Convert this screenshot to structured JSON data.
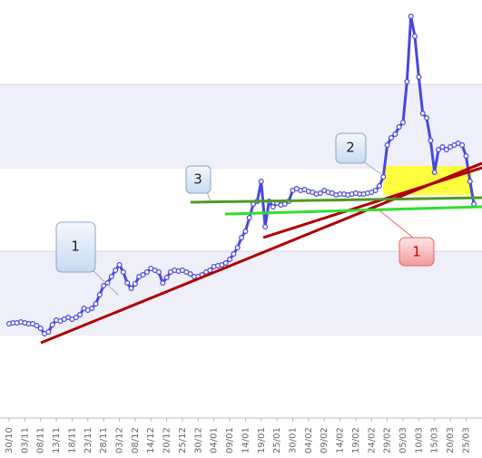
{
  "chart_data": {
    "type": "line",
    "categories": [
      "30/10",
      null,
      null,
      null,
      "03/11",
      null,
      null,
      null,
      "08/11",
      null,
      null,
      null,
      "13/11",
      null,
      null,
      null,
      "18/11",
      null,
      null,
      null,
      "23/11",
      null,
      null,
      null,
      "28/11",
      null,
      null,
      null,
      "03/12",
      null,
      null,
      null,
      "08/12",
      null,
      null,
      null,
      "14/12",
      null,
      null,
      null,
      "20/12",
      null,
      null,
      null,
      "25/12",
      null,
      null,
      null,
      "30/12",
      null,
      null,
      null,
      "04/01",
      null,
      null,
      null,
      "09/01",
      null,
      null,
      null,
      "14/01",
      null,
      null,
      null,
      "19/01",
      null,
      null,
      null,
      "25/01",
      null,
      null,
      null,
      "30/01",
      null,
      null,
      null,
      "04/02",
      null,
      null,
      null,
      "09/02",
      null,
      null,
      null,
      "14/02",
      null,
      null,
      null,
      "19/02",
      null,
      null,
      null,
      "24/02",
      null,
      null,
      null,
      "29/02",
      null,
      null,
      null,
      "05/03",
      null,
      null,
      null,
      "10/03",
      null,
      null,
      null,
      "15/03",
      null,
      null,
      null,
      "20/03",
      null,
      null,
      null,
      "25/03",
      null,
      null
    ],
    "values": [
      104,
      105,
      105,
      106,
      105,
      104,
      104,
      102,
      99,
      93,
      95,
      103,
      108,
      107,
      109,
      111,
      109,
      111,
      114,
      121,
      119,
      121,
      126,
      136,
      146,
      149,
      156,
      163,
      169,
      161,
      149,
      143,
      148,
      156,
      158,
      161,
      165,
      163,
      161,
      149,
      155,
      161,
      163,
      162,
      163,
      161,
      159,
      156,
      156,
      158,
      161,
      163,
      167,
      168,
      169,
      171,
      175,
      181,
      188,
      199,
      206,
      221,
      236,
      239,
      261,
      211,
      239,
      233,
      237,
      235,
      236,
      239,
      251,
      253,
      251,
      252,
      250,
      249,
      247,
      248,
      251,
      249,
      248,
      246,
      247,
      247,
      246,
      247,
      248,
      247,
      247,
      248,
      249,
      251,
      256,
      266,
      301,
      309,
      313,
      321,
      326,
      371,
      443,
      421,
      376,
      336,
      331,
      306,
      271,
      296,
      299,
      296,
      299,
      301,
      303,
      301,
      289,
      261,
      236
    ],
    "color": "#4848e0",
    "ylim": [
      0,
      461
    ],
    "yticks": [
      92,
      184,
      276,
      368
    ],
    "grid": true,
    "annotations": [
      "1",
      "3",
      "2",
      "1"
    ]
  }
}
